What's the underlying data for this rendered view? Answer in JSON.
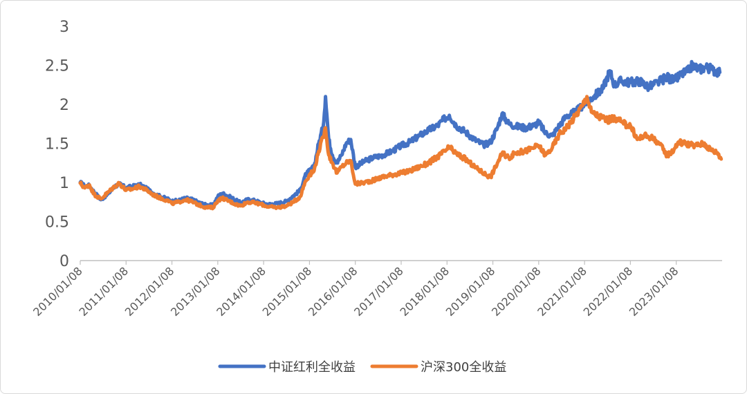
{
  "chart_data": {
    "type": "line",
    "title": "",
    "xlabel": "",
    "ylabel": "",
    "ylim": [
      0,
      3
    ],
    "yticks": [
      "0",
      "0.5",
      "1",
      "1.5",
      "2",
      "2.5",
      "3"
    ],
    "xticks": [
      "2010/01/08",
      "2011/01/08",
      "2012/01/08",
      "2013/01/08",
      "2014/01/08",
      "2015/01/08",
      "2016/01/08",
      "2017/01/08",
      "2018/01/08",
      "2019/01/08",
      "2020/01/08",
      "2021/01/08",
      "2022/01/08",
      "2023/01/08"
    ],
    "x_range": [
      2010.0,
      2024.0
    ],
    "grid": false,
    "legend_position": "bottom",
    "series": [
      {
        "name": "中证红利全收益",
        "color": "#4472C4",
        "points": [
          [
            2010.0,
            1.0
          ],
          [
            2010.1,
            0.95
          ],
          [
            2010.2,
            0.96
          ],
          [
            2010.3,
            0.88
          ],
          [
            2010.45,
            0.78
          ],
          [
            2010.6,
            0.85
          ],
          [
            2010.75,
            0.95
          ],
          [
            2010.85,
            0.98
          ],
          [
            2011.0,
            0.93
          ],
          [
            2011.15,
            0.95
          ],
          [
            2011.3,
            0.97
          ],
          [
            2011.45,
            0.92
          ],
          [
            2011.6,
            0.86
          ],
          [
            2011.75,
            0.82
          ],
          [
            2011.9,
            0.79
          ],
          [
            2012.0,
            0.76
          ],
          [
            2012.15,
            0.77
          ],
          [
            2012.3,
            0.8
          ],
          [
            2012.45,
            0.78
          ],
          [
            2012.6,
            0.74
          ],
          [
            2012.75,
            0.71
          ],
          [
            2012.9,
            0.71
          ],
          [
            2013.0,
            0.82
          ],
          [
            2013.1,
            0.86
          ],
          [
            2013.25,
            0.82
          ],
          [
            2013.4,
            0.77
          ],
          [
            2013.5,
            0.74
          ],
          [
            2013.65,
            0.78
          ],
          [
            2013.8,
            0.77
          ],
          [
            2013.95,
            0.74
          ],
          [
            2014.1,
            0.72
          ],
          [
            2014.3,
            0.73
          ],
          [
            2014.5,
            0.76
          ],
          [
            2014.65,
            0.83
          ],
          [
            2014.8,
            0.9
          ],
          [
            2014.9,
            1.08
          ],
          [
            2015.0,
            1.15
          ],
          [
            2015.1,
            1.2
          ],
          [
            2015.2,
            1.5
          ],
          [
            2015.3,
            1.72
          ],
          [
            2015.35,
            2.1
          ],
          [
            2015.42,
            1.55
          ],
          [
            2015.5,
            1.35
          ],
          [
            2015.6,
            1.25
          ],
          [
            2015.7,
            1.35
          ],
          [
            2015.8,
            1.5
          ],
          [
            2015.9,
            1.55
          ],
          [
            2016.0,
            1.2
          ],
          [
            2016.2,
            1.27
          ],
          [
            2016.4,
            1.32
          ],
          [
            2016.6,
            1.35
          ],
          [
            2016.8,
            1.4
          ],
          [
            2017.0,
            1.47
          ],
          [
            2017.2,
            1.52
          ],
          [
            2017.4,
            1.6
          ],
          [
            2017.6,
            1.67
          ],
          [
            2017.8,
            1.73
          ],
          [
            2017.95,
            1.82
          ],
          [
            2018.05,
            1.86
          ],
          [
            2018.2,
            1.73
          ],
          [
            2018.4,
            1.65
          ],
          [
            2018.6,
            1.55
          ],
          [
            2018.8,
            1.48
          ],
          [
            2018.95,
            1.52
          ],
          [
            2019.1,
            1.7
          ],
          [
            2019.2,
            1.88
          ],
          [
            2019.35,
            1.75
          ],
          [
            2019.5,
            1.72
          ],
          [
            2019.7,
            1.7
          ],
          [
            2019.9,
            1.73
          ],
          [
            2020.0,
            1.77
          ],
          [
            2020.15,
            1.63
          ],
          [
            2020.3,
            1.6
          ],
          [
            2020.45,
            1.73
          ],
          [
            2020.6,
            1.85
          ],
          [
            2020.8,
            1.9
          ],
          [
            2020.95,
            1.98
          ],
          [
            2021.05,
            2.03
          ],
          [
            2021.2,
            2.1
          ],
          [
            2021.4,
            2.2
          ],
          [
            2021.55,
            2.43
          ],
          [
            2021.65,
            2.25
          ],
          [
            2021.8,
            2.3
          ],
          [
            2022.0,
            2.28
          ],
          [
            2022.2,
            2.3
          ],
          [
            2022.4,
            2.22
          ],
          [
            2022.6,
            2.28
          ],
          [
            2022.8,
            2.35
          ],
          [
            2022.95,
            2.3
          ],
          [
            2023.1,
            2.38
          ],
          [
            2023.25,
            2.42
          ],
          [
            2023.35,
            2.5
          ],
          [
            2023.5,
            2.45
          ],
          [
            2023.65,
            2.48
          ],
          [
            2023.8,
            2.44
          ],
          [
            2023.95,
            2.41
          ]
        ]
      },
      {
        "name": "沪深300全收益",
        "color": "#ED7D31",
        "points": [
          [
            2010.0,
            0.99
          ],
          [
            2010.1,
            0.93
          ],
          [
            2010.2,
            0.97
          ],
          [
            2010.3,
            0.85
          ],
          [
            2010.45,
            0.79
          ],
          [
            2010.6,
            0.87
          ],
          [
            2010.75,
            0.95
          ],
          [
            2010.85,
            0.99
          ],
          [
            2011.0,
            0.9
          ],
          [
            2011.15,
            0.92
          ],
          [
            2011.3,
            0.95
          ],
          [
            2011.45,
            0.9
          ],
          [
            2011.6,
            0.84
          ],
          [
            2011.75,
            0.8
          ],
          [
            2011.9,
            0.77
          ],
          [
            2012.0,
            0.73
          ],
          [
            2012.15,
            0.75
          ],
          [
            2012.3,
            0.78
          ],
          [
            2012.45,
            0.75
          ],
          [
            2012.6,
            0.71
          ],
          [
            2012.75,
            0.68
          ],
          [
            2012.9,
            0.68
          ],
          [
            2013.0,
            0.77
          ],
          [
            2013.1,
            0.8
          ],
          [
            2013.25,
            0.76
          ],
          [
            2013.4,
            0.72
          ],
          [
            2013.5,
            0.7
          ],
          [
            2013.65,
            0.75
          ],
          [
            2013.8,
            0.74
          ],
          [
            2013.95,
            0.72
          ],
          [
            2014.1,
            0.69
          ],
          [
            2014.3,
            0.68
          ],
          [
            2014.5,
            0.7
          ],
          [
            2014.65,
            0.75
          ],
          [
            2014.8,
            0.82
          ],
          [
            2014.9,
            1.0
          ],
          [
            2015.0,
            1.1
          ],
          [
            2015.1,
            1.15
          ],
          [
            2015.2,
            1.4
          ],
          [
            2015.3,
            1.58
          ],
          [
            2015.35,
            1.7
          ],
          [
            2015.42,
            1.35
          ],
          [
            2015.5,
            1.25
          ],
          [
            2015.6,
            1.12
          ],
          [
            2015.7,
            1.2
          ],
          [
            2015.8,
            1.25
          ],
          [
            2015.9,
            1.28
          ],
          [
            2016.0,
            0.98
          ],
          [
            2016.2,
            1.0
          ],
          [
            2016.4,
            1.03
          ],
          [
            2016.6,
            1.07
          ],
          [
            2016.8,
            1.1
          ],
          [
            2017.0,
            1.12
          ],
          [
            2017.2,
            1.15
          ],
          [
            2017.4,
            1.2
          ],
          [
            2017.6,
            1.25
          ],
          [
            2017.8,
            1.33
          ],
          [
            2017.95,
            1.4
          ],
          [
            2018.05,
            1.45
          ],
          [
            2018.2,
            1.37
          ],
          [
            2018.4,
            1.3
          ],
          [
            2018.6,
            1.2
          ],
          [
            2018.8,
            1.12
          ],
          [
            2018.95,
            1.07
          ],
          [
            2019.1,
            1.25
          ],
          [
            2019.2,
            1.37
          ],
          [
            2019.35,
            1.32
          ],
          [
            2019.5,
            1.38
          ],
          [
            2019.7,
            1.4
          ],
          [
            2019.9,
            1.45
          ],
          [
            2020.0,
            1.47
          ],
          [
            2020.15,
            1.35
          ],
          [
            2020.3,
            1.45
          ],
          [
            2020.45,
            1.62
          ],
          [
            2020.6,
            1.7
          ],
          [
            2020.8,
            1.85
          ],
          [
            2020.95,
            1.98
          ],
          [
            2021.05,
            2.1
          ],
          [
            2021.15,
            1.9
          ],
          [
            2021.3,
            1.85
          ],
          [
            2021.5,
            1.8
          ],
          [
            2021.7,
            1.82
          ],
          [
            2021.85,
            1.75
          ],
          [
            2022.0,
            1.73
          ],
          [
            2022.15,
            1.55
          ],
          [
            2022.3,
            1.6
          ],
          [
            2022.45,
            1.58
          ],
          [
            2022.6,
            1.52
          ],
          [
            2022.8,
            1.35
          ],
          [
            2022.95,
            1.42
          ],
          [
            2023.05,
            1.52
          ],
          [
            2023.2,
            1.5
          ],
          [
            2023.4,
            1.47
          ],
          [
            2023.6,
            1.5
          ],
          [
            2023.75,
            1.42
          ],
          [
            2023.9,
            1.38
          ],
          [
            2023.98,
            1.3
          ]
        ]
      }
    ]
  }
}
